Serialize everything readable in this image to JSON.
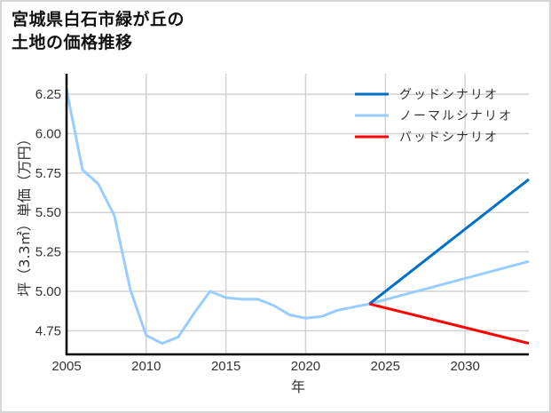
{
  "title": {
    "line1": "宮城県白石市緑が丘の",
    "line2": "土地の価格推移"
  },
  "chart_data": {
    "type": "line",
    "title": "宮城県白石市緑が丘の土地の価格推移",
    "xlabel": "年",
    "ylabel": "坪（3.3㎡）単価（万円）",
    "xlim": [
      2005,
      2034
    ],
    "ylim": [
      4.6,
      6.38
    ],
    "grid": true,
    "legend_position": "upper right",
    "x_ticks": [
      "2005",
      "2010",
      "2015",
      "2020",
      "2025",
      "2030"
    ],
    "y_ticks": [
      "4.75",
      "5.00",
      "5.25",
      "5.50",
      "5.75",
      "6.00",
      "6.25"
    ],
    "series": [
      {
        "name": "グッドシナリオ",
        "color": "#0070c8",
        "x": [
          2024,
          2034
        ],
        "values": [
          4.92,
          5.71
        ]
      },
      {
        "name": "ノーマルシナリオ",
        "color": "#99ccff",
        "x": [
          2005,
          2006,
          2007,
          2008,
          2009,
          2010,
          2011,
          2012,
          2013,
          2014,
          2015,
          2016,
          2017,
          2018,
          2019,
          2020,
          2021,
          2022,
          2023,
          2024,
          2034
        ],
        "values": [
          6.28,
          5.77,
          5.68,
          5.48,
          5.01,
          4.72,
          4.67,
          4.71,
          4.86,
          5.0,
          4.96,
          4.95,
          4.95,
          4.91,
          4.85,
          4.83,
          4.84,
          4.88,
          4.9,
          4.92,
          5.19
        ]
      },
      {
        "name": "バッドシナリオ",
        "color": "#ff0000",
        "x": [
          2024,
          2034
        ],
        "values": [
          4.92,
          4.67
        ]
      }
    ]
  }
}
